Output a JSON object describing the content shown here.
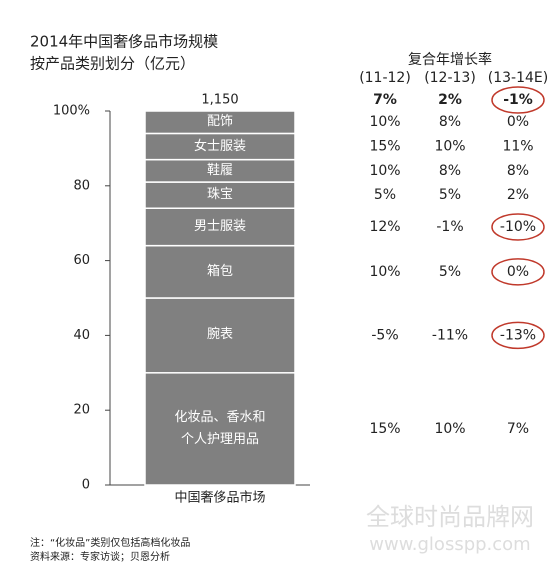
{
  "chart_data": {
    "type": "stacked-bar",
    "title": "2014年中国奢侈品市场规模",
    "subtitle": "按产品类别划分（亿元）",
    "categories": [
      "中国奢侈品市场"
    ],
    "total_label": "1,150",
    "series": [
      {
        "name": "化妆品、香水和个人护理用品",
        "values": [
          30
        ]
      },
      {
        "name": "腕表",
        "values": [
          20
        ]
      },
      {
        "name": "箱包",
        "values": [
          14
        ]
      },
      {
        "name": "男士服装",
        "values": [
          10
        ]
      },
      {
        "name": "珠宝",
        "values": [
          7
        ]
      },
      {
        "name": "鞋履",
        "values": [
          6
        ]
      },
      {
        "name": "女士服装",
        "values": [
          7
        ]
      },
      {
        "name": "配饰",
        "values": [
          6
        ]
      }
    ],
    "color": "#808080",
    "ylim": [
      0,
      100
    ],
    "yticks": [
      0,
      20,
      40,
      60,
      80,
      {
        "value": 100,
        "label": "100%"
      }
    ]
  },
  "cagr": {
    "title": "复合年增长率",
    "columns": [
      "(11-12)",
      "(12-13)",
      "(13-14E)"
    ],
    "total": [
      "7%",
      "2%",
      "-1%"
    ],
    "rows": [
      [
        "15%",
        "10%",
        "7%"
      ],
      [
        "-5%",
        "-11%",
        "-13%"
      ],
      [
        "10%",
        "5%",
        "0%"
      ],
      [
        "12%",
        "-1%",
        "-10%"
      ],
      [
        "5%",
        "5%",
        "2%"
      ],
      [
        "10%",
        "8%",
        "8%"
      ],
      [
        "15%",
        "10%",
        "11%"
      ],
      [
        "10%",
        "8%",
        "0%"
      ]
    ]
  },
  "notes": [
    "注：“化妆品”类别仅包括高档化妆品",
    "资料来源：专家访谈；贝恩分析"
  ],
  "watermark": [
    "全球时尚品牌网",
    "www.glosspp.com"
  ]
}
